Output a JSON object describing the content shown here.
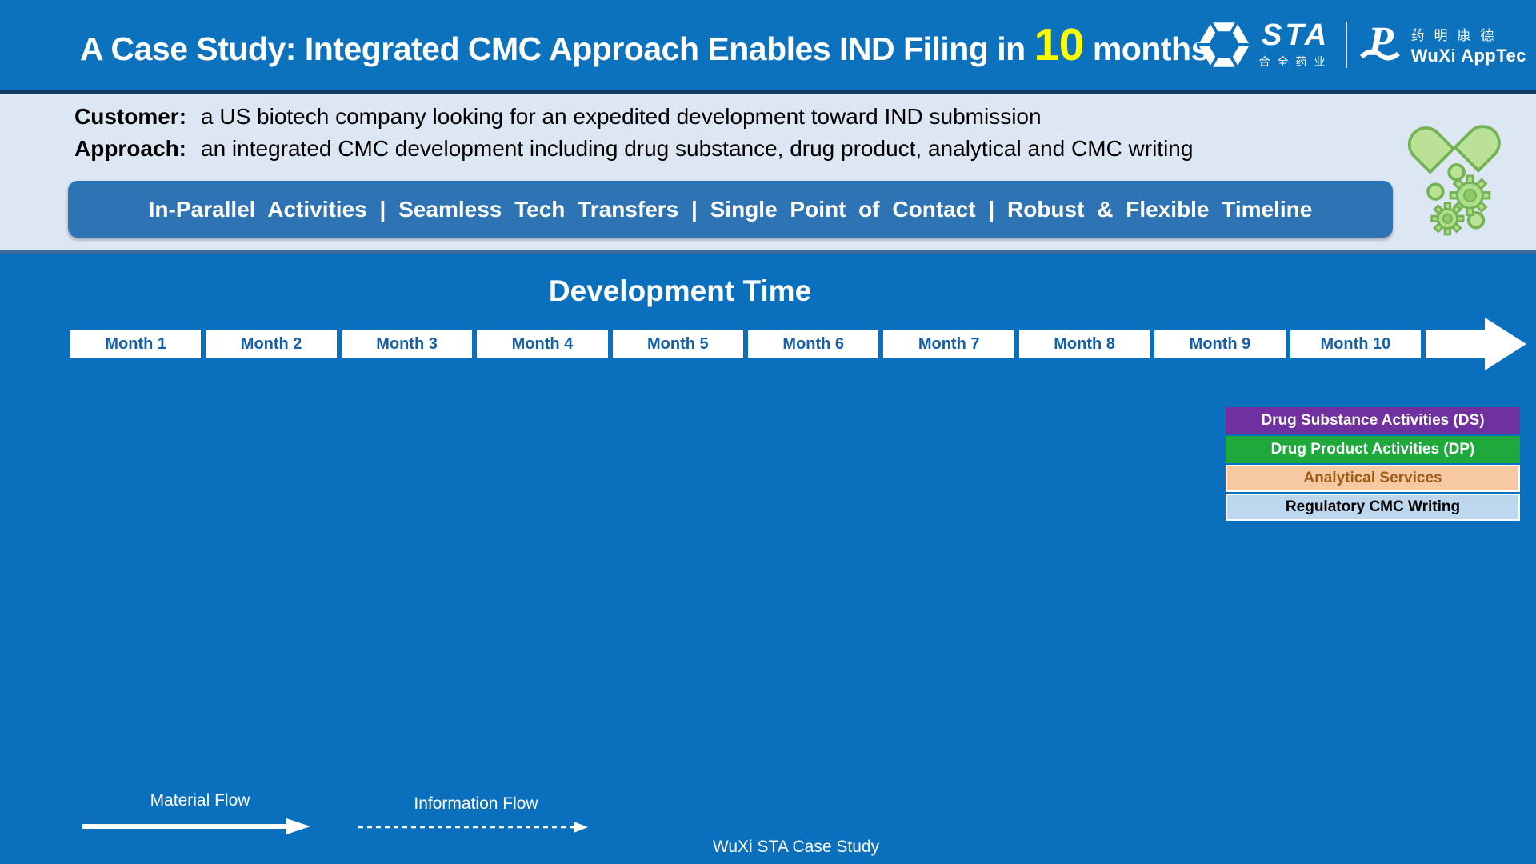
{
  "header": {
    "title_prefix": "A Case Study: Integrated CMC Approach Enables IND Filing in ",
    "title_highlight": "10",
    "title_suffix": " months",
    "logos": {
      "sta_text": "STA",
      "sta_chinese": "合全药业",
      "wuxi_chinese": "药明康德",
      "wuxi_text": "WuXi AppTec"
    }
  },
  "summary": {
    "customer_label": "Customer:",
    "customer_text": "a US biotech company looking for an expedited development toward IND submission",
    "approach_label": "Approach:",
    "approach_text": "an integrated CMC development including drug substance, drug product, analytical and CMC writing",
    "banner": "In-Parallel Activities | Seamless Tech Transfers | Single Point of Contact | Robust & Flexible Timeline"
  },
  "timeline": {
    "heading": "Development Time",
    "months": [
      "Month 1",
      "Month 2",
      "Month 3",
      "Month 4",
      "Month 5",
      "Month 6",
      "Month 7",
      "Month 8",
      "Month 9",
      "Month 10"
    ]
  },
  "legend": {
    "items": [
      {
        "label": "Drug Substance Activities (DS)",
        "bg": "#7030a0",
        "fg": "#ffffff",
        "bordered": false
      },
      {
        "label": "Drug Product Activities (DP)",
        "bg": "#1fa83c",
        "fg": "#ffffff",
        "bordered": false
      },
      {
        "label": "Analytical Services",
        "bg": "#f6c9a2",
        "fg": "#9e5b16",
        "bordered": true
      },
      {
        "label": "Regulatory CMC Writing",
        "bg": "#bdd7ee",
        "fg": "#000000",
        "bordered": true
      }
    ]
  },
  "flows": {
    "material_label": "Material Flow",
    "information_label": "Information Flow"
  },
  "footer": {
    "caption": "WuXi STA Case Study"
  },
  "colors": {
    "main_blue": "#0a70be",
    "header_blue": "#0c72be",
    "band_background": "#dce7f3",
    "banner_blue": "#2e74b5",
    "divider_navy": "#123a63",
    "divider_steel": "#3e6d9d",
    "month_text_blue": "#1560a8",
    "highlight_yellow": "#ffff00",
    "capsule_green_fill": "#b9e297",
    "capsule_green_stroke": "#74b254"
  }
}
